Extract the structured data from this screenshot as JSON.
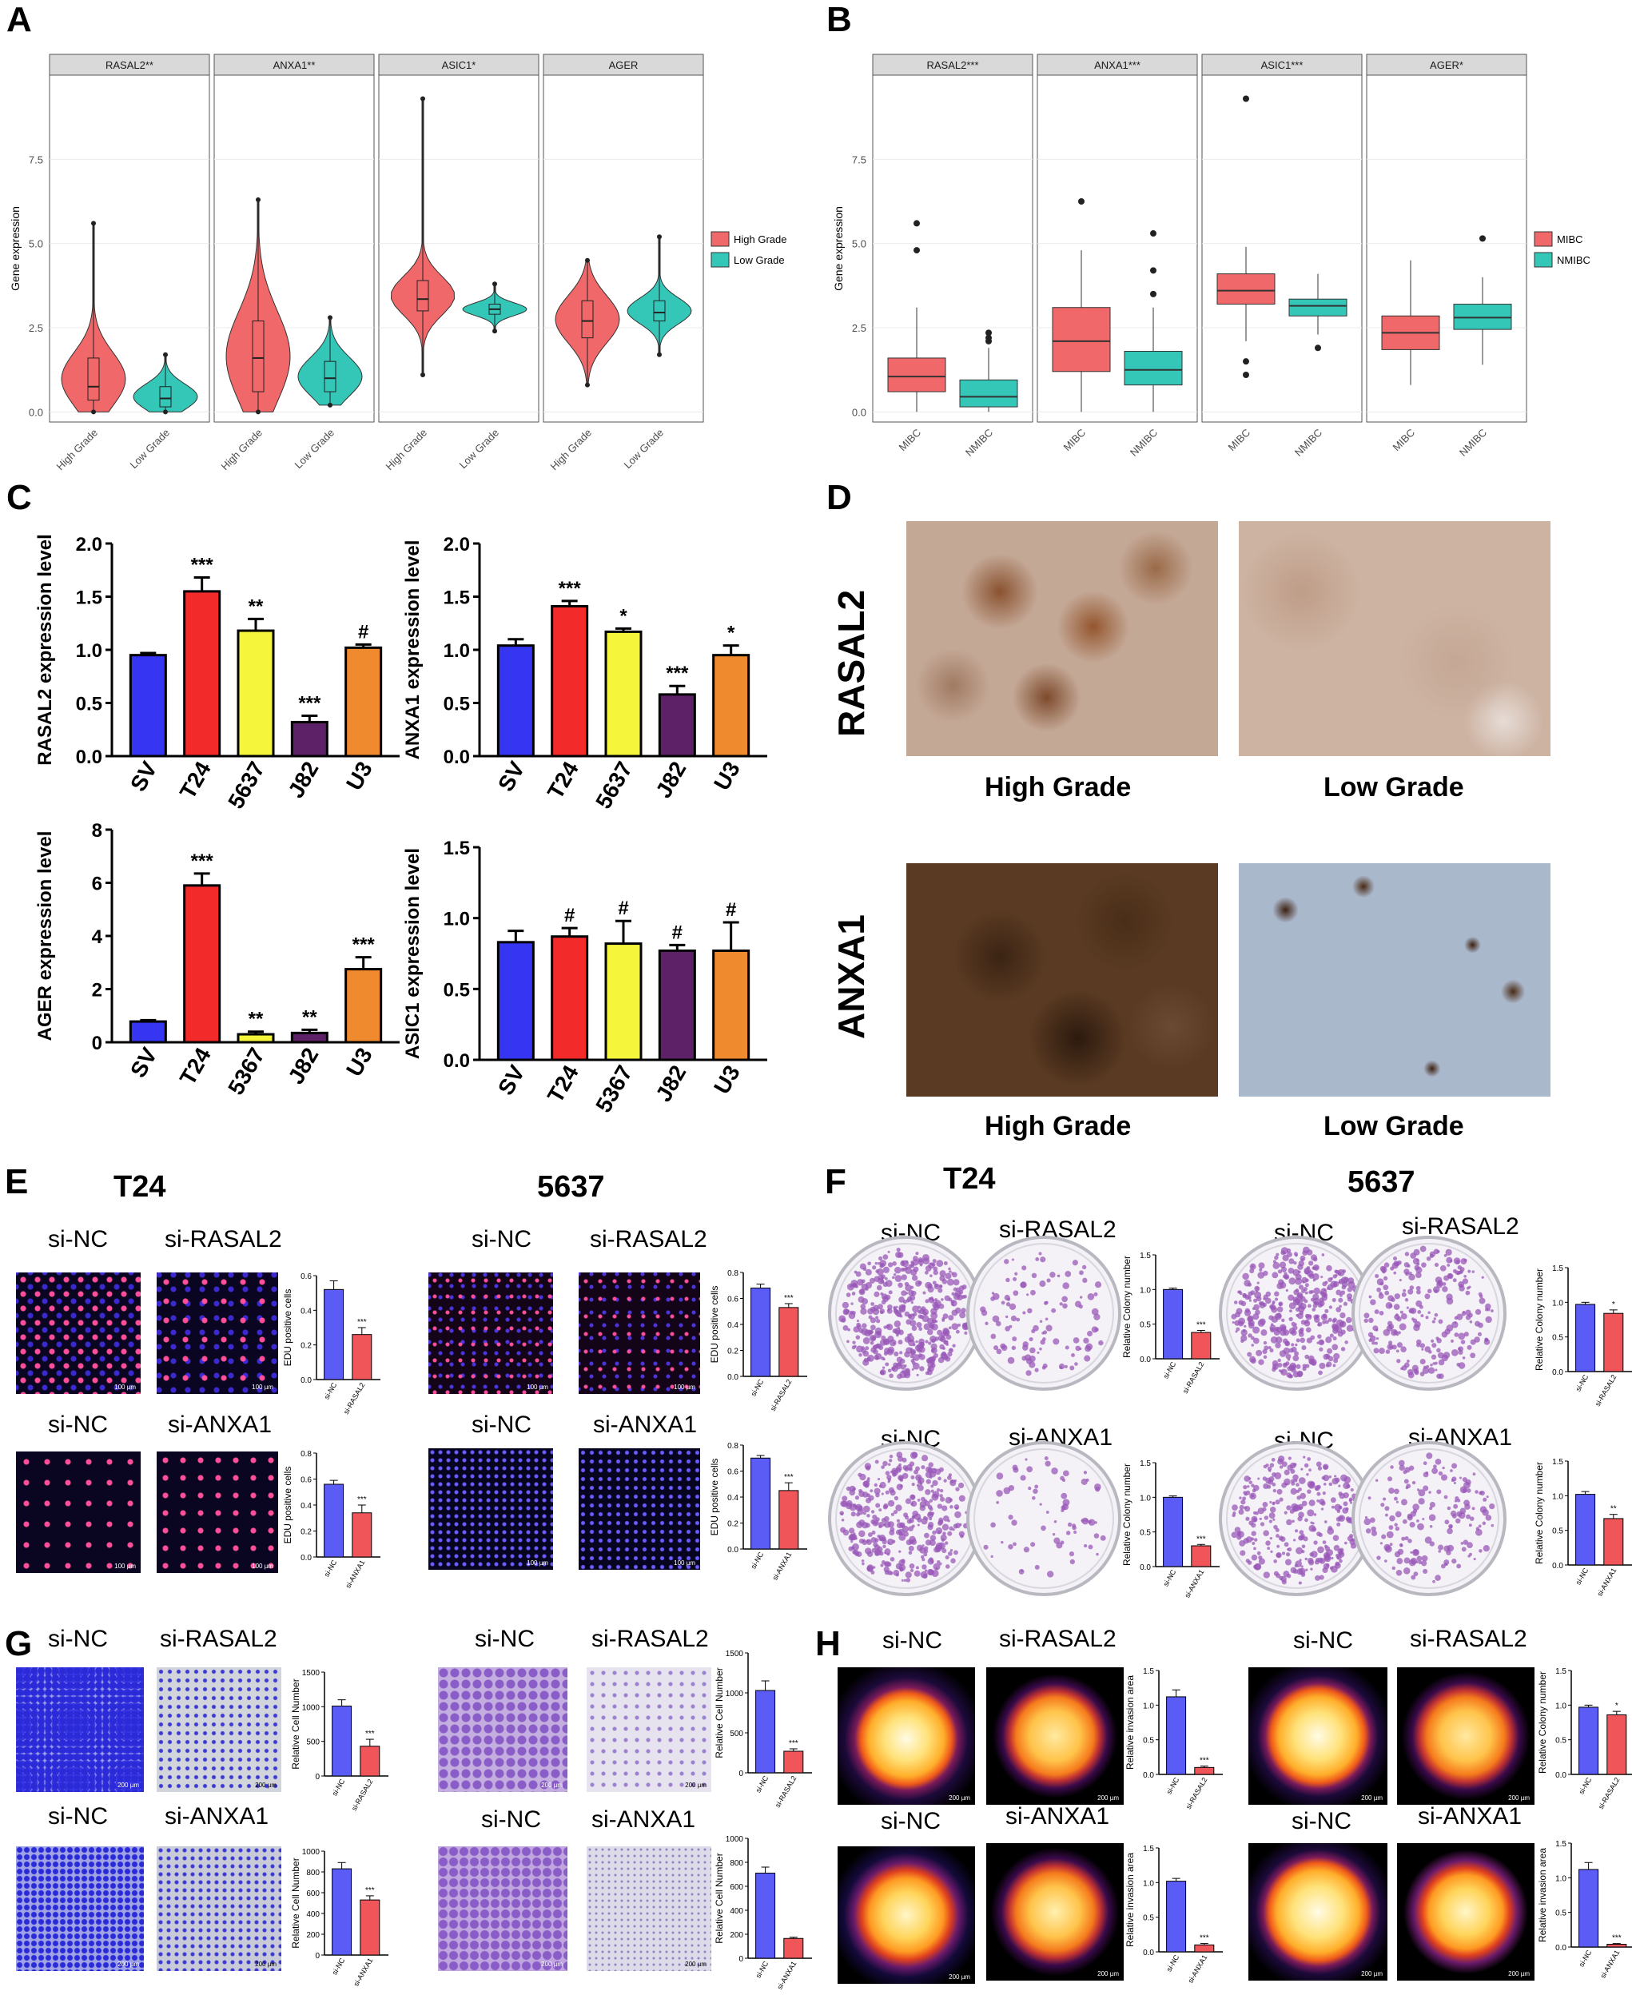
{
  "panel_letters": {
    "a": "A",
    "b": "B",
    "c": "C",
    "d": "D",
    "e": "E",
    "f": "F",
    "g": "G",
    "h": "H"
  },
  "colors": {
    "high": "#F0686A",
    "low": "#34C7B8",
    "sv": "#3636F2",
    "t24": "#F22A2A",
    "c5637": "#F5F53B",
    "j82": "#5C2166",
    "u3": "#F08A2E",
    "sinc": "#5B5BF5",
    "sik": "#F0555A"
  },
  "chart_data": [
    {
      "id": "A",
      "type": "violin",
      "facets": [
        "RASAL2**",
        "ANXA1**",
        "ASIC1*",
        "AGER"
      ],
      "groups": [
        "High Grade",
        "Low Grade"
      ],
      "ylabel": "Gene expression",
      "yticks": [
        "0.0",
        "2.5",
        "5.0",
        "7.5"
      ],
      "ylim": [
        -0.3,
        10.0
      ],
      "legend": [
        "High Grade",
        "Low Grade"
      ],
      "stats": [
        {
          "facet": "RASAL2**",
          "group": "High Grade",
          "min": 0.0,
          "q1": 0.35,
          "median": 0.75,
          "q3": 1.6,
          "max": 5.6
        },
        {
          "facet": "RASAL2**",
          "group": "Low Grade",
          "min": 0.0,
          "q1": 0.15,
          "median": 0.4,
          "q3": 0.75,
          "max": 1.7
        },
        {
          "facet": "ANXA1**",
          "group": "High Grade",
          "min": 0.0,
          "q1": 0.6,
          "median": 1.6,
          "q3": 2.7,
          "max": 6.3
        },
        {
          "facet": "ANXA1**",
          "group": "Low Grade",
          "min": 0.2,
          "q1": 0.6,
          "median": 1.0,
          "q3": 1.5,
          "max": 2.8
        },
        {
          "facet": "ASIC1*",
          "group": "High Grade",
          "min": 1.1,
          "q1": 3.0,
          "median": 3.35,
          "q3": 3.9,
          "max": 9.3
        },
        {
          "facet": "ASIC1*",
          "group": "Low Grade",
          "min": 2.4,
          "q1": 2.9,
          "median": 3.05,
          "q3": 3.2,
          "max": 3.8
        },
        {
          "facet": "AGER",
          "group": "High Grade",
          "min": 0.8,
          "q1": 2.2,
          "median": 2.7,
          "q3": 3.3,
          "max": 4.5
        },
        {
          "facet": "AGER",
          "group": "Low Grade",
          "min": 1.7,
          "q1": 2.7,
          "median": 2.95,
          "q3": 3.3,
          "max": 5.2
        }
      ]
    },
    {
      "id": "B",
      "type": "box",
      "facets": [
        "RASAL2***",
        "ANXA1***",
        "ASIC1***",
        "AGER*"
      ],
      "groups": [
        "MIBC",
        "NMIBC"
      ],
      "ylabel": "Gene expression",
      "yticks": [
        "0.0",
        "2.5",
        "5.0",
        "7.5"
      ],
      "ylim": [
        -0.3,
        10.0
      ],
      "legend": [
        "MIBC",
        "NMIBC"
      ],
      "stats": [
        {
          "facet": "RASAL2***",
          "group": "MIBC",
          "min": 0.0,
          "q1": 0.6,
          "median": 1.05,
          "q3": 1.6,
          "max": 3.1,
          "outliers": [
            4.8,
            5.6
          ]
        },
        {
          "facet": "RASAL2***",
          "group": "NMIBC",
          "min": 0.0,
          "q1": 0.15,
          "median": 0.45,
          "q3": 0.95,
          "max": 1.9,
          "outliers": [
            2.1,
            2.2,
            2.35
          ]
        },
        {
          "facet": "ANXA1***",
          "group": "MIBC",
          "min": 0.0,
          "q1": 1.2,
          "median": 2.1,
          "q3": 3.1,
          "max": 4.8,
          "outliers": [
            6.25
          ]
        },
        {
          "facet": "ANXA1***",
          "group": "NMIBC",
          "min": 0.0,
          "q1": 0.8,
          "median": 1.25,
          "q3": 1.8,
          "max": 3.1,
          "outliers": [
            3.5,
            4.2,
            5.3
          ]
        },
        {
          "facet": "ASIC1***",
          "group": "MIBC",
          "min": 2.1,
          "q1": 3.2,
          "median": 3.6,
          "q3": 4.1,
          "max": 4.9,
          "outliers": [
            1.1,
            1.5,
            9.3
          ]
        },
        {
          "facet": "ASIC1***",
          "group": "NMIBC",
          "min": 2.3,
          "q1": 2.85,
          "median": 3.15,
          "q3": 3.35,
          "max": 4.1,
          "outliers": [
            1.9
          ]
        },
        {
          "facet": "AGER*",
          "group": "MIBC",
          "min": 0.8,
          "q1": 1.85,
          "median": 2.35,
          "q3": 2.85,
          "max": 4.5,
          "outliers": []
        },
        {
          "facet": "AGER*",
          "group": "NMIBC",
          "min": 1.4,
          "q1": 2.45,
          "median": 2.8,
          "q3": 3.2,
          "max": 4.0,
          "outliers": [
            5.15
          ]
        }
      ]
    },
    {
      "id": "C1",
      "type": "bar",
      "ylabel": "RASAL2 expression level",
      "categories": [
        "SV",
        "T24",
        "5637",
        "J82",
        "U3"
      ],
      "values": [
        0.95,
        1.55,
        1.18,
        0.32,
        1.02
      ],
      "errors": [
        0.02,
        0.13,
        0.11,
        0.06,
        0.03
      ],
      "sig": [
        "",
        "***",
        "**",
        "***",
        "#"
      ],
      "ylim": [
        0,
        2.0
      ],
      "yticks": [
        "0.0",
        "0.5",
        "1.0",
        "1.5",
        "2.0"
      ]
    },
    {
      "id": "C2",
      "type": "bar",
      "ylabel": "ANXA1 expression level",
      "categories": [
        "SV",
        "T24",
        "5637",
        "J82",
        "U3"
      ],
      "values": [
        1.04,
        1.41,
        1.17,
        0.58,
        0.95
      ],
      "errors": [
        0.06,
        0.05,
        0.03,
        0.08,
        0.09
      ],
      "sig": [
        "",
        "***",
        "*",
        "***",
        "*"
      ],
      "ylim": [
        0,
        2.0
      ],
      "yticks": [
        "0.0",
        "0.5",
        "1.0",
        "1.5",
        "2.0"
      ]
    },
    {
      "id": "C3",
      "type": "bar",
      "ylabel": "AGER expression level",
      "categories": [
        "SV",
        "T24",
        "5367",
        "J82",
        "U3"
      ],
      "values": [
        0.78,
        5.9,
        0.3,
        0.35,
        2.75
      ],
      "errors": [
        0.05,
        0.45,
        0.1,
        0.12,
        0.45
      ],
      "sig": [
        "",
        "***",
        "**",
        "**",
        "***"
      ],
      "ylim": [
        0,
        8
      ],
      "yticks": [
        "0",
        "2",
        "4",
        "6",
        "8"
      ]
    },
    {
      "id": "C4",
      "type": "bar",
      "ylabel": "ASIC1 expression level",
      "categories": [
        "SV",
        "T24",
        "5367",
        "J82",
        "U3"
      ],
      "values": [
        0.83,
        0.87,
        0.82,
        0.77,
        0.77
      ],
      "errors": [
        0.08,
        0.06,
        0.16,
        0.04,
        0.2
      ],
      "sig": [
        "",
        "#",
        "#",
        "#",
        "#"
      ],
      "ylim": [
        0,
        1.5
      ],
      "yticks": [
        "0.0",
        "0.5",
        "1.0",
        "1.5"
      ]
    },
    {
      "id": "E1",
      "type": "bar",
      "ylabel": "EDU positive cells",
      "categories": [
        "si-NC",
        "si-RASAL2"
      ],
      "values": [
        0.52,
        0.26
      ],
      "errors": [
        0.05,
        0.04
      ],
      "sig": "***",
      "ylim": [
        0,
        0.6
      ],
      "yticks": [
        "0.0",
        "0.2",
        "0.4",
        "0.6"
      ]
    },
    {
      "id": "E2",
      "type": "bar",
      "ylabel": "EDU positive cells",
      "categories": [
        "si-NC",
        "si-ANXA1"
      ],
      "values": [
        0.56,
        0.34
      ],
      "errors": [
        0.03,
        0.06
      ],
      "sig": "***",
      "ylim": [
        0,
        0.8
      ],
      "yticks": [
        "0.0",
        "0.2",
        "0.4",
        "0.6",
        "0.8"
      ]
    },
    {
      "id": "E3",
      "type": "bar",
      "ylabel": "EDU positive cells",
      "categories": [
        "si-NC",
        "si-RASAL2"
      ],
      "values": [
        0.68,
        0.53
      ],
      "errors": [
        0.03,
        0.03
      ],
      "sig": "***",
      "ylim": [
        0,
        0.8
      ],
      "yticks": [
        "0.0",
        "0.2",
        "0.4",
        "0.6",
        "0.8"
      ]
    },
    {
      "id": "E4",
      "type": "bar",
      "ylabel": "EDU positive cells",
      "categories": [
        "si-NC",
        "si-ANXA1"
      ],
      "values": [
        0.7,
        0.45
      ],
      "errors": [
        0.02,
        0.06
      ],
      "sig": "***",
      "ylim": [
        0,
        0.8
      ],
      "yticks": [
        "0.0",
        "0.2",
        "0.4",
        "0.6",
        "0.8"
      ]
    },
    {
      "id": "F1",
      "type": "bar",
      "ylabel": "Relative Colony number",
      "categories": [
        "si-NC",
        "si-RASAL2"
      ],
      "values": [
        1.0,
        0.38
      ],
      "errors": [
        0.02,
        0.03
      ],
      "sig": "***",
      "ylim": [
        0,
        1.5
      ],
      "yticks": [
        "0.0",
        "0.5",
        "1.0",
        "1.5"
      ]
    },
    {
      "id": "F2",
      "type": "bar",
      "ylabel": "Relative Colony number",
      "categories": [
        "si-NC",
        "si-ANXA1"
      ],
      "values": [
        1.0,
        0.3
      ],
      "errors": [
        0.02,
        0.02
      ],
      "sig": "***",
      "ylim": [
        0,
        1.5
      ],
      "yticks": [
        "0.0",
        "0.5",
        "1.0",
        "1.5"
      ]
    },
    {
      "id": "F3",
      "type": "bar",
      "ylabel": "Relative Colony number",
      "categories": [
        "si-NC",
        "si-RASAL2"
      ],
      "values": [
        0.97,
        0.84
      ],
      "errors": [
        0.03,
        0.05
      ],
      "sig": "*",
      "ylim": [
        0,
        1.5
      ],
      "yticks": [
        "0.0",
        "0.5",
        "1.0",
        "1.5"
      ]
    },
    {
      "id": "F4",
      "type": "bar",
      "ylabel": "Relative Colony number",
      "categories": [
        "si-NC",
        "si-ANXA1"
      ],
      "values": [
        1.02,
        0.67
      ],
      "errors": [
        0.04,
        0.06
      ],
      "sig": "**",
      "ylim": [
        0,
        1.5
      ],
      "yticks": [
        "0.0",
        "0.5",
        "1.0",
        "1.5"
      ]
    },
    {
      "id": "G1",
      "type": "bar",
      "ylabel": "Relative Cell Number",
      "categories": [
        "si-NC",
        "si-RASAL2"
      ],
      "values": [
        1010,
        430
      ],
      "errors": [
        90,
        100
      ],
      "sig": "***",
      "ylim": [
        0,
        1500
      ],
      "yticks": [
        "0",
        "500",
        "1000",
        "1500"
      ]
    },
    {
      "id": "G2",
      "type": "bar",
      "ylabel": "Relative Cell Number",
      "categories": [
        "si-NC",
        "si-ANXA1"
      ],
      "values": [
        830,
        530
      ],
      "errors": [
        60,
        40
      ],
      "sig": "***",
      "ylim": [
        0,
        1000
      ],
      "yticks": [
        "0",
        "200",
        "400",
        "600",
        "800",
        "1000"
      ]
    },
    {
      "id": "G3",
      "type": "bar",
      "ylabel": "Relative Cell Number",
      "categories": [
        "si-NC",
        "si-RASAL2"
      ],
      "values": [
        1030,
        270
      ],
      "errors": [
        120,
        30
      ],
      "sig": "***",
      "ylim": [
        0,
        1500
      ],
      "yticks": [
        "0",
        "500",
        "1000",
        "1500"
      ]
    },
    {
      "id": "G4",
      "type": "bar",
      "ylabel": "Relative Cell Number",
      "categories": [
        "si-NC",
        "si-ANXA1"
      ],
      "values": [
        710,
        165
      ],
      "errors": [
        50,
        10
      ],
      "sig": "",
      "ylim": [
        0,
        1000
      ],
      "yticks": [
        "0",
        "200",
        "400",
        "600",
        "800",
        "1000"
      ]
    },
    {
      "id": "H1",
      "type": "bar",
      "ylabel": "Relative invasion area",
      "categories": [
        "si-NC",
        "si-RASAL2"
      ],
      "values": [
        1.12,
        0.1
      ],
      "errors": [
        0.1,
        0.02
      ],
      "sig": "***",
      "ylim": [
        0,
        1.5
      ],
      "yticks": [
        "0.0",
        "0.5",
        "1.0",
        "1.5"
      ]
    },
    {
      "id": "H2",
      "type": "bar",
      "ylabel": "Relative invasion area",
      "categories": [
        "si-NC",
        "si-ANXA1"
      ],
      "values": [
        1.02,
        0.1
      ],
      "errors": [
        0.04,
        0.02
      ],
      "sig": "***",
      "ylim": [
        0,
        1.5
      ],
      "yticks": [
        "0.0",
        "0.5",
        "1.0",
        "1.5"
      ]
    },
    {
      "id": "H3",
      "type": "bar",
      "ylabel": "Relative Colony number",
      "categories": [
        "si-NC",
        "si-RASAL2"
      ],
      "values": [
        0.97,
        0.86
      ],
      "errors": [
        0.03,
        0.05
      ],
      "sig": "*",
      "ylim": [
        0,
        1.5
      ],
      "yticks": [
        "0.0",
        "0.5",
        "1.0",
        "1.5"
      ]
    },
    {
      "id": "H4",
      "type": "bar",
      "ylabel": "Relative invasion area",
      "categories": [
        "si-NC",
        "si-ANXA1"
      ],
      "values": [
        1.12,
        0.04
      ],
      "errors": [
        0.1,
        0.01
      ],
      "sig": "***",
      "ylim": [
        0,
        1.5
      ],
      "yticks": [
        "0.0",
        "0.5",
        "1.0",
        "1.5"
      ]
    }
  ],
  "panel_d": {
    "row1_label": "RASAL2",
    "row2_label": "ANXA1",
    "left_caption": "High Grade",
    "right_caption": "Low Grade"
  },
  "panel_e": {
    "title_left": "T24",
    "title_right": "5637",
    "si_nc": "si-NC",
    "si_rasal2": "si-RASAL2",
    "si_anxa1": "si-ANXA1",
    "scale": "100 µm"
  },
  "panel_f": {
    "title_left": "T24",
    "title_right": "5637",
    "si_nc": "si-NC",
    "si_rasal2": "si-RASAL2",
    "si_anxa1": "si-ANXA1"
  },
  "panel_g": {
    "si_nc": "si-NC",
    "si_rasal2": "si-RASAL2",
    "si_anxa1": "si-ANXA1",
    "scale": "200 µm"
  },
  "panel_h": {
    "si_nc": "si-NC",
    "si_rasal2": "si-RASAL2",
    "si_anxa1": "si-ANXA1",
    "scale": "200 µm"
  }
}
